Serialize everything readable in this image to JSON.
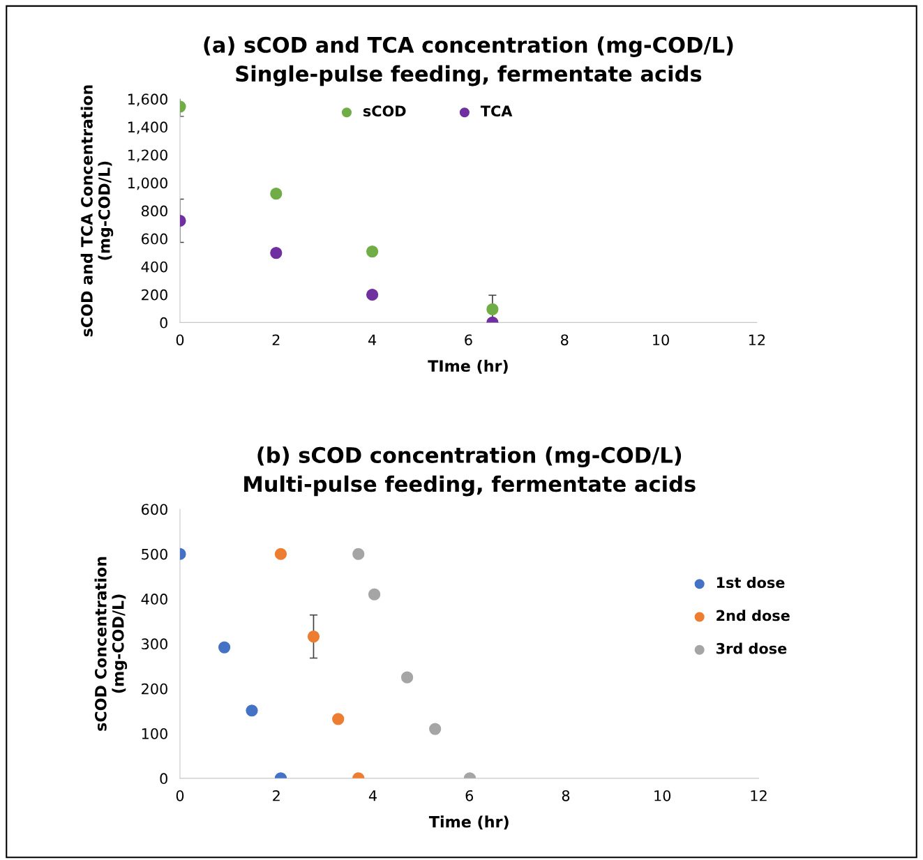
{
  "chart_data": [
    {
      "type": "scatter",
      "title": "(a) sCOD and TCA concentration (mg-COD/L)\nSingle-pulse feeding, fermentate acids",
      "xlabel": "TIme (hr)",
      "ylabel": "sCOD and TCA Concentration\n(mg-COD/L)",
      "xlim": [
        0,
        12
      ],
      "xticks": [
        0,
        2,
        4,
        6,
        8,
        10,
        12
      ],
      "ylim": [
        0,
        1600
      ],
      "yticks": [
        0,
        200,
        400,
        600,
        800,
        {
          "value": 1000,
          "label": "1,000"
        },
        {
          "value": 1200,
          "label": "1,200"
        },
        {
          "value": 1400,
          "label": "1,400"
        },
        {
          "value": 1600,
          "label": "1,600"
        }
      ],
      "series": [
        {
          "name": "sCOD",
          "color": "#70ad47",
          "x": [
            0,
            2,
            4,
            6.5
          ],
          "values": [
            1545,
            922,
            508,
            95
          ],
          "errors": [
            70,
            null,
            null,
            100
          ]
        },
        {
          "name": "TCA",
          "color": "#7030a0",
          "x": [
            0,
            2,
            4,
            6.5
          ],
          "values": [
            728,
            498,
            199,
            0
          ],
          "errors": [
            155,
            null,
            null,
            null
          ]
        }
      ],
      "legend": "top",
      "grid": false,
      "marker": "circle"
    },
    {
      "type": "scatter",
      "title": "(b) sCOD concentration (mg-COD/L)\nMulti-pulse feeding, fermentate acids",
      "xlabel": "Time (hr)",
      "ylabel": "sCOD Concentration\n(mg-COD/L)",
      "xlim": [
        0,
        12
      ],
      "xticks": [
        0,
        2,
        4,
        6,
        8,
        10,
        12
      ],
      "ylim": [
        0,
        600
      ],
      "yticks": [
        0,
        100,
        200,
        300,
        400,
        500,
        600
      ],
      "series": [
        {
          "name": "1st dose",
          "color": "#4472c4",
          "x": [
            0,
            0.92,
            1.49,
            2.09
          ],
          "values": [
            500,
            292,
            151,
            0
          ]
        },
        {
          "name": "2nd dose",
          "color": "#ed7d31",
          "x": [
            2.09,
            2.77,
            3.28,
            3.7
          ],
          "values": [
            500,
            316,
            132,
            0
          ],
          "errors": [
            null,
            48,
            null,
            null
          ]
        },
        {
          "name": "3rd dose",
          "color": "#a5a5a5",
          "x": [
            3.7,
            4.03,
            4.71,
            5.29,
            6.01
          ],
          "values": [
            500,
            410,
            225,
            110,
            0
          ]
        }
      ],
      "legend": "right",
      "grid": false,
      "marker": "circle"
    }
  ]
}
